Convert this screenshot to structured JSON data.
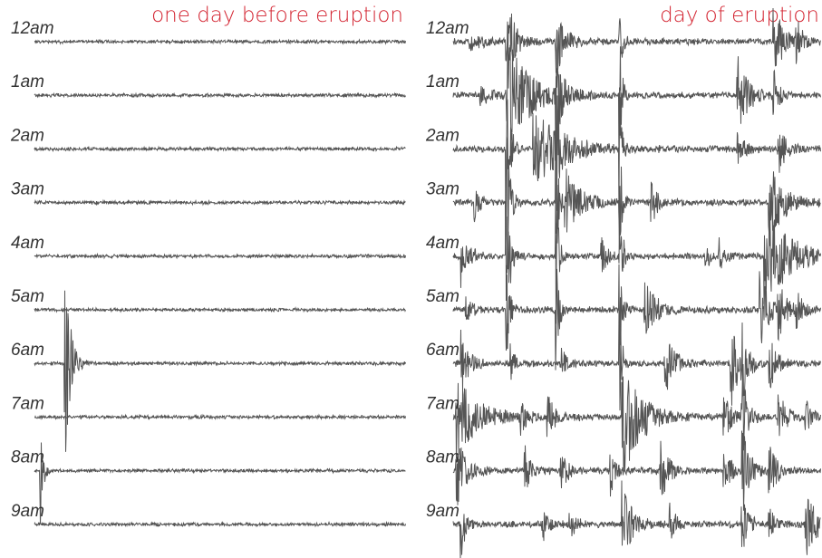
{
  "panels": [
    {
      "title": "one day before eruption",
      "hours": [
        "12am",
        "1am",
        "2am",
        "3am",
        "4am",
        "5am",
        "6am",
        "7am",
        "8am",
        "9am"
      ]
    },
    {
      "title": "day of eruption",
      "hours": [
        "12am",
        "1am",
        "2am",
        "3am",
        "4am",
        "5am",
        "6am",
        "7am",
        "8am",
        "9am"
      ]
    }
  ]
}
